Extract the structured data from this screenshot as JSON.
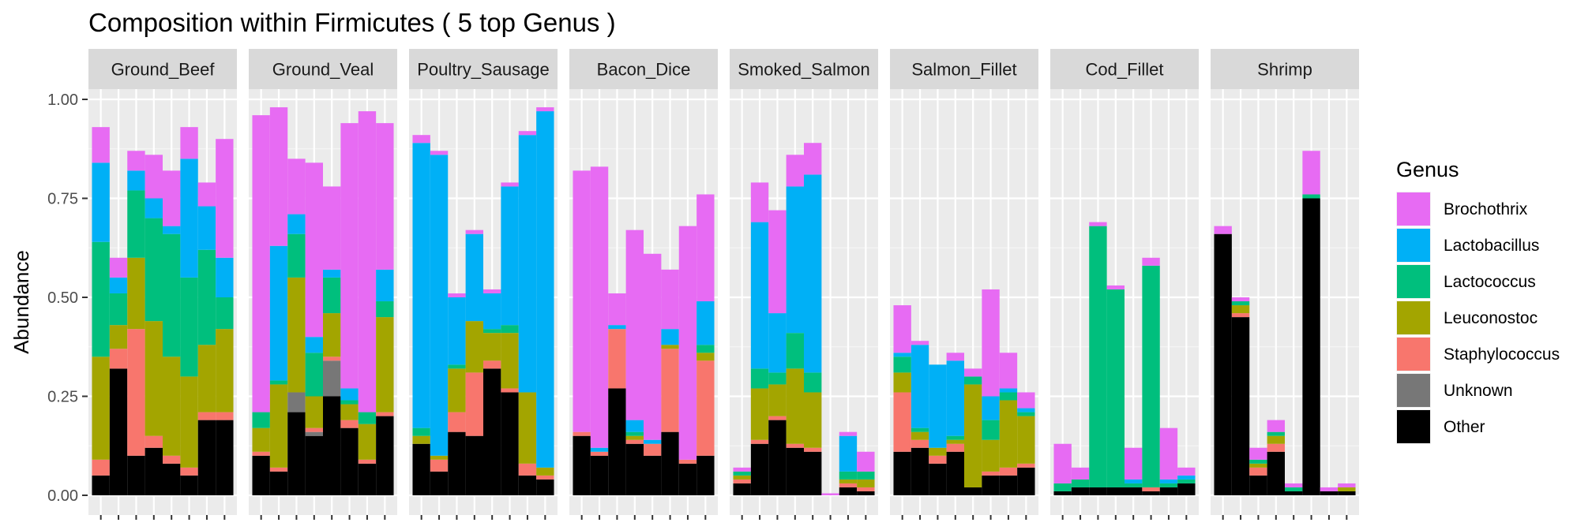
{
  "chart_data": {
    "type": "bar",
    "stacked": true,
    "title": "Composition within Firmicutes ( 5 top Genus )",
    "xlabel": "",
    "ylabel": "Abundance",
    "ylim": [
      0,
      1.05
    ],
    "yticks": [
      "0.00",
      "0.25",
      "0.50",
      "0.75",
      "1.00"
    ],
    "yticks_values": [
      0,
      0.25,
      0.5,
      0.75,
      1.0
    ],
    "grid": true,
    "legend": {
      "title": "Genus",
      "placement": "right",
      "entries": [
        "Brochothrix",
        "Lactobacillus",
        "Lactococcus",
        "Leuconostoc",
        "Staphylococcus",
        "Unknown",
        "Other"
      ]
    },
    "colors": {
      "Brochothrix": "#E76BF3",
      "Lactobacillus": "#00B0F6",
      "Lactococcus": "#00BF7D",
      "Leuconostoc": "#A3A500",
      "Staphylococcus": "#F8766D",
      "Unknown": "#777777",
      "Other": "#000000"
    },
    "stack_order_bottom_to_top": [
      "Other",
      "Unknown",
      "Staphylococcus",
      "Leuconostoc",
      "Lactococcus",
      "Lactobacillus",
      "Brochothrix"
    ],
    "facets": [
      {
        "name": "Ground_Beef",
        "bars": [
          [
            0.05,
            0,
            0.04,
            0.26,
            0.29,
            0.2,
            0.09
          ],
          [
            0.32,
            0,
            0.05,
            0.06,
            0.08,
            0.04,
            0.05
          ],
          [
            0.1,
            0,
            0.32,
            0.18,
            0.17,
            0.05,
            0.05
          ],
          [
            0.12,
            0,
            0.03,
            0.29,
            0.26,
            0.05,
            0.11
          ],
          [
            0.08,
            0,
            0.02,
            0.25,
            0.31,
            0.02,
            0.14
          ],
          [
            0.05,
            0,
            0.02,
            0.23,
            0.25,
            0.3,
            0.08
          ],
          [
            0.19,
            0,
            0.02,
            0.17,
            0.24,
            0.11,
            0.06
          ],
          [
            0.19,
            0,
            0.02,
            0.21,
            0.08,
            0.1,
            0.3
          ]
        ]
      },
      {
        "name": "Ground_Veal",
        "bars": [
          [
            0.1,
            0,
            0.01,
            0.06,
            0.04,
            0,
            0.75
          ],
          [
            0.06,
            0,
            0.01,
            0.21,
            0.01,
            0.34,
            0.35
          ],
          [
            0.21,
            0.05,
            0,
            0.29,
            0.11,
            0.05,
            0.14
          ],
          [
            0.15,
            0.01,
            0.01,
            0.08,
            0.11,
            0.04,
            0.44
          ],
          [
            0.25,
            0.09,
            0.01,
            0.11,
            0.09,
            0.02,
            0.21
          ],
          [
            0.17,
            0,
            0.02,
            0.04,
            0.01,
            0.03,
            0.67
          ],
          [
            0.08,
            0,
            0.01,
            0.09,
            0.03,
            0,
            0.76
          ],
          [
            0.2,
            0,
            0.01,
            0.24,
            0.04,
            0.08,
            0.37
          ]
        ]
      },
      {
        "name": "Poultry_Sausage",
        "bars": [
          [
            0.13,
            0,
            0,
            0.02,
            0.02,
            0.72,
            0.02
          ],
          [
            0.06,
            0,
            0.03,
            0.01,
            0,
            0.76,
            0.01
          ],
          [
            0.16,
            0,
            0.05,
            0.11,
            0.01,
            0.17,
            0.01
          ],
          [
            0.15,
            0,
            0.16,
            0.13,
            0,
            0.22,
            0.01
          ],
          [
            0.32,
            0,
            0.02,
            0.07,
            0.01,
            0.09,
            0.01
          ],
          [
            0.26,
            0,
            0.01,
            0.14,
            0.02,
            0.35,
            0.01
          ],
          [
            0.05,
            0,
            0.03,
            0.18,
            0,
            0.65,
            0.01
          ],
          [
            0.04,
            0,
            0.01,
            0.02,
            0,
            0.9,
            0.01
          ]
        ]
      },
      {
        "name": "Bacon_Dice",
        "bars": [
          [
            0.15,
            0,
            0.01,
            0,
            0,
            0,
            0.66
          ],
          [
            0.1,
            0,
            0.01,
            0,
            0,
            0.01,
            0.71
          ],
          [
            0.27,
            0,
            0.15,
            0,
            0,
            0.01,
            0.08
          ],
          [
            0.13,
            0,
            0.01,
            0.01,
            0.01,
            0.03,
            0.48
          ],
          [
            0.1,
            0,
            0.03,
            0,
            0,
            0.01,
            0.47
          ],
          [
            0.16,
            0,
            0.21,
            0.01,
            0,
            0.04,
            0.15
          ],
          [
            0.08,
            0,
            0.01,
            0,
            0,
            0,
            0.59
          ],
          [
            0.1,
            0,
            0.24,
            0.02,
            0.02,
            0.11,
            0.27
          ]
        ]
      },
      {
        "name": "Smoked_Salmon",
        "bars": [
          [
            0.03,
            0,
            0.01,
            0.01,
            0.01,
            0,
            0.01
          ],
          [
            0.13,
            0,
            0.01,
            0.13,
            0.05,
            0.37,
            0.1
          ],
          [
            0.19,
            0,
            0.01,
            0.08,
            0.03,
            0.15,
            0.26
          ],
          [
            0.12,
            0,
            0.01,
            0.19,
            0.09,
            0.37,
            0.08
          ],
          [
            0.11,
            0,
            0.01,
            0.14,
            0.05,
            0.5,
            0.08
          ],
          [
            0,
            0,
            0,
            0,
            0,
            0,
            0.005
          ],
          [
            0.02,
            0,
            0.01,
            0.01,
            0.02,
            0.09,
            0.01
          ],
          [
            0.01,
            0,
            0.01,
            0.02,
            0.02,
            0.0,
            0.05
          ]
        ]
      },
      {
        "name": "Salmon_Fillet",
        "bars": [
          [
            0.11,
            0,
            0.15,
            0.05,
            0.04,
            0.01,
            0.12
          ],
          [
            0.12,
            0,
            0.02,
            0.02,
            0.01,
            0.21,
            0.01
          ],
          [
            0.08,
            0,
            0.02,
            0.02,
            0,
            0.21,
            0
          ],
          [
            0.11,
            0,
            0.02,
            0.01,
            0.01,
            0.19,
            0.02
          ],
          [
            0.02,
            0,
            0,
            0.26,
            0.02,
            0,
            0.02
          ],
          [
            0.05,
            0,
            0.01,
            0.08,
            0.05,
            0.06,
            0.27
          ],
          [
            0.05,
            0,
            0.02,
            0.17,
            0.02,
            0.01,
            0.09
          ],
          [
            0.07,
            0,
            0.01,
            0.12,
            0.01,
            0.01,
            0.04
          ]
        ]
      },
      {
        "name": "Cod_Fillet",
        "bars": [
          [
            0.01,
            0,
            0,
            0,
            0.02,
            0,
            0.1
          ],
          [
            0.02,
            0,
            0,
            0,
            0.02,
            0,
            0.03
          ],
          [
            0.02,
            0,
            0,
            0,
            0.66,
            0,
            0.01
          ],
          [
            0.02,
            0,
            0,
            0,
            0.5,
            0,
            0.01
          ],
          [
            0.02,
            0,
            0,
            0,
            0.01,
            0.01,
            0.08
          ],
          [
            0.01,
            0,
            0.01,
            0,
            0.56,
            0,
            0.02
          ],
          [
            0.02,
            0,
            0,
            0,
            0.01,
            0.01,
            0.13
          ],
          [
            0.03,
            0,
            0,
            0,
            0.01,
            0.01,
            0.02
          ]
        ]
      },
      {
        "name": "Shrimp",
        "bars": [
          [
            0.66,
            0,
            0,
            0,
            0,
            0,
            0.02
          ],
          [
            0.45,
            0,
            0.01,
            0.02,
            0.01,
            0,
            0.01
          ],
          [
            0.05,
            0,
            0.02,
            0.01,
            0.01,
            0,
            0.03
          ],
          [
            0.11,
            0,
            0.02,
            0.02,
            0.01,
            0,
            0.03
          ],
          [
            0.01,
            0,
            0,
            0,
            0.01,
            0,
            0.01
          ],
          [
            0.75,
            0,
            0,
            0,
            0.01,
            0,
            0.11
          ],
          [
            0.01,
            0,
            0,
            0,
            0,
            0,
            0.01
          ],
          [
            0.01,
            0,
            0,
            0.01,
            0,
            0,
            0.01
          ]
        ]
      }
    ]
  }
}
